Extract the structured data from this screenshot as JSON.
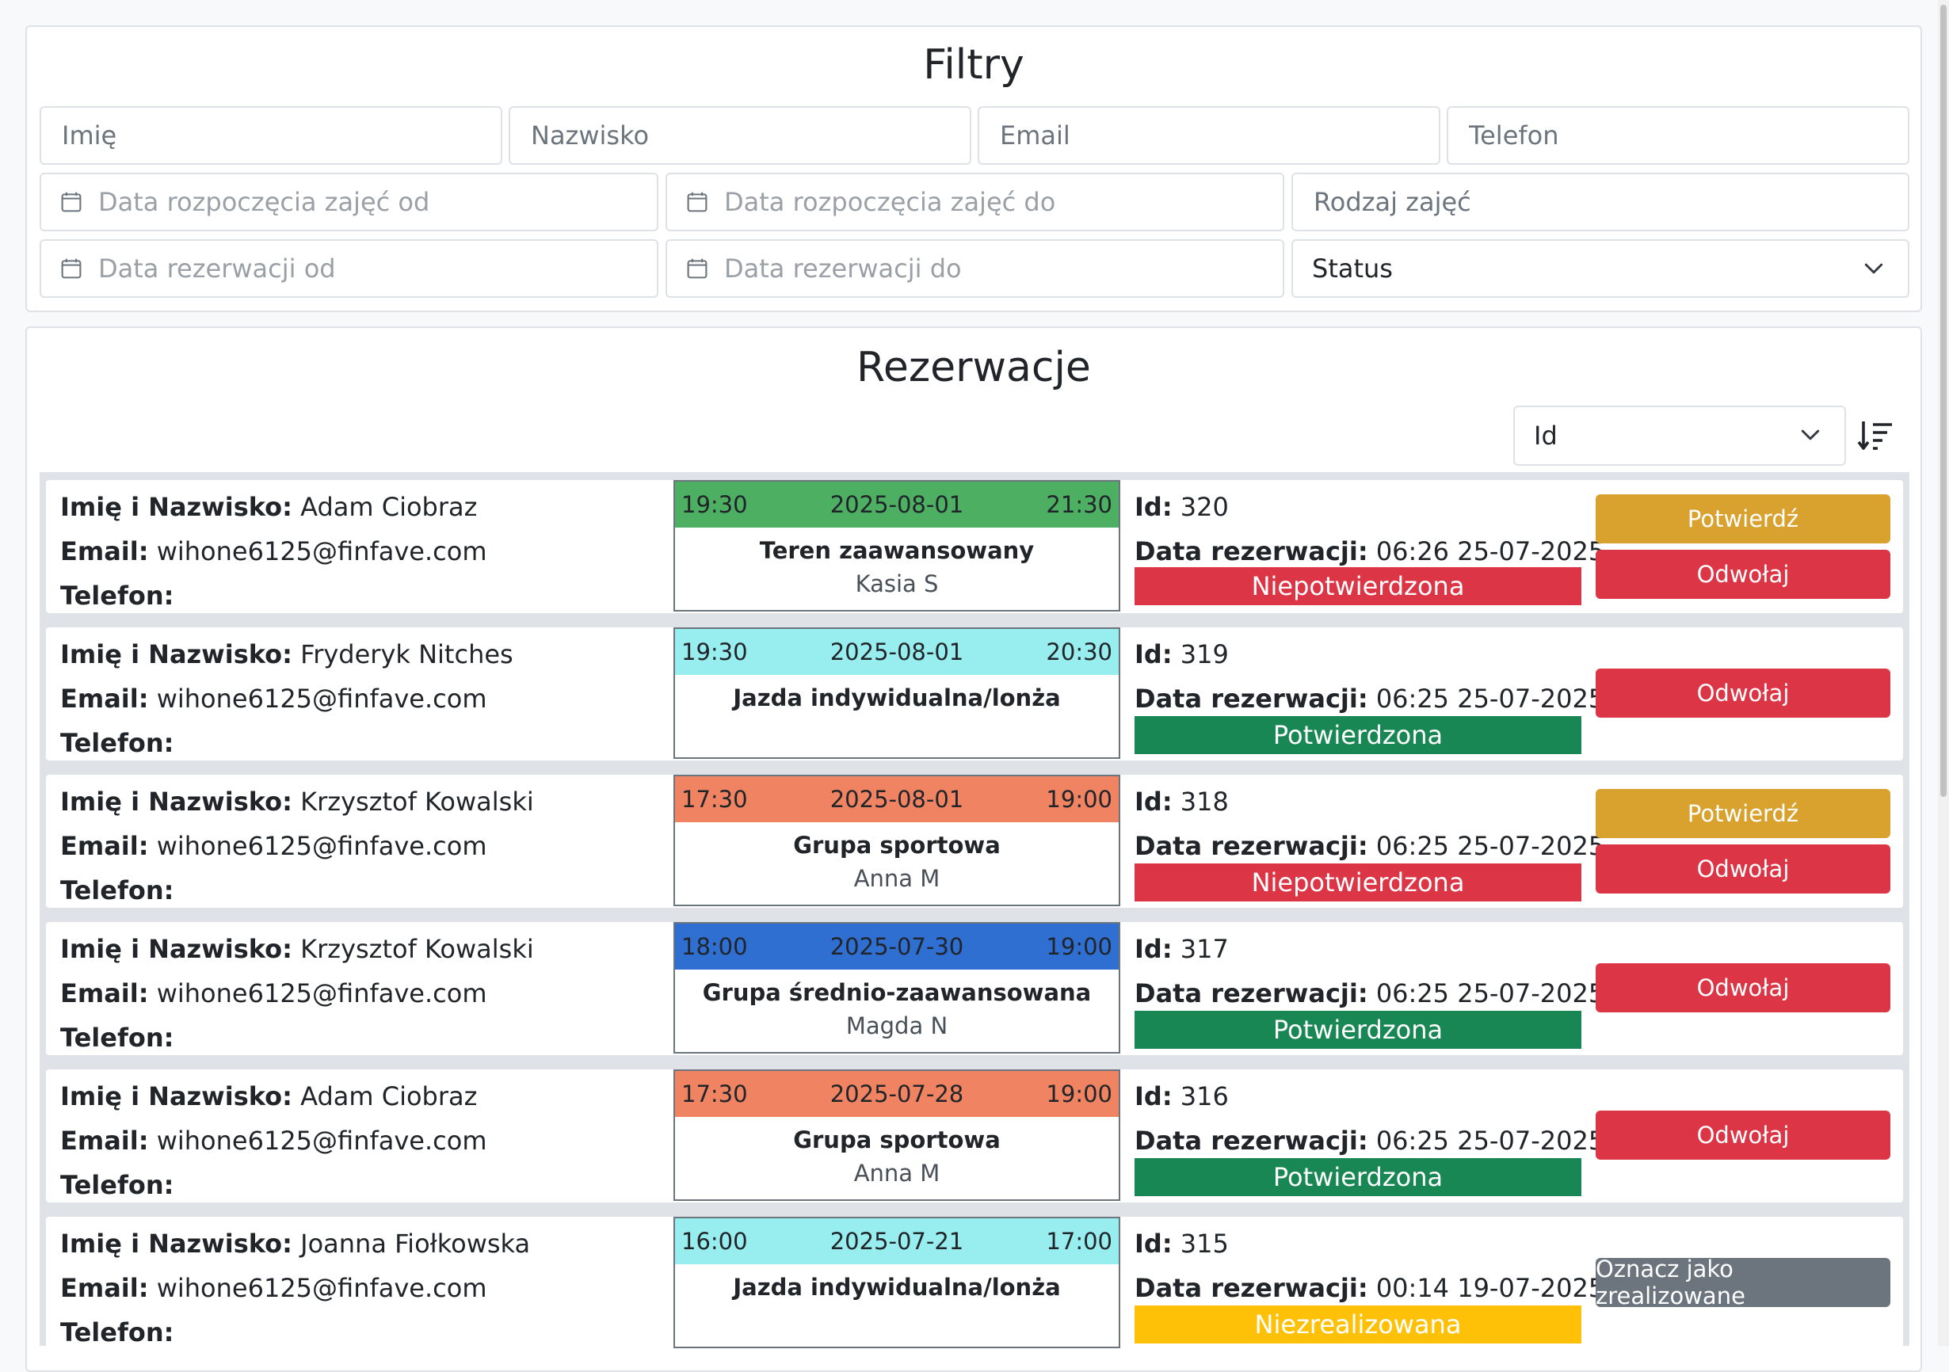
{
  "filters": {
    "title": "Filtry",
    "first_name_placeholder": "Imię",
    "last_name_placeholder": "Nazwisko",
    "email_placeholder": "Email",
    "phone_placeholder": "Telefon",
    "lesson_start_from_placeholder": "Data rozpoczęcia zajęć od",
    "lesson_start_to_placeholder": "Data rozpoczęcia zajęć do",
    "lesson_type_placeholder": "Rodzaj zajęć",
    "reservation_from_placeholder": "Data rezerwacji od",
    "reservation_to_placeholder": "Data rezerwacji do",
    "status_selected": "Status"
  },
  "reservations": {
    "title": "Rezerwacje",
    "sort_selected": "Id",
    "labels": {
      "name": "Imię i Nazwisko:",
      "email": "Email:",
      "phone": "Telefon:",
      "id": "Id:",
      "reservation_date": "Data rezerwacji:"
    },
    "items": [
      {
        "name": "Adam Ciobraz",
        "email": "wihone6125@finfave.com",
        "phone": "",
        "start": "19:30",
        "date": "2025-08-01",
        "end": "21:30",
        "lesson": "Teren zaawansowany",
        "trainer": "Kasia S",
        "lesson_color": "#4caf61",
        "id": "320",
        "reservation_date": "06:26 25-07-2025",
        "status": "Niepotwierdzona",
        "status_color": "#dc3545",
        "status_text_color": "#ffffff",
        "buttons": [
          {
            "label": "Potwierdź",
            "color": "#d9a22f"
          },
          {
            "label": "Odwołaj",
            "color": "#dc3545"
          }
        ]
      },
      {
        "name": "Fryderyk Nitches",
        "email": "wihone6125@finfave.com",
        "phone": "",
        "start": "19:30",
        "date": "2025-08-01",
        "end": "20:30",
        "lesson": "Jazda indywidualna/lonża",
        "trainer": "",
        "lesson_color": "#98eeee",
        "id": "319",
        "reservation_date": "06:25 25-07-2025",
        "status": "Potwierdzona",
        "status_color": "#198754",
        "status_text_color": "#ffffff",
        "buttons": [
          {
            "label": "Odwołaj",
            "color": "#dc3545"
          }
        ]
      },
      {
        "name": "Krzysztof Kowalski",
        "email": "wihone6125@finfave.com",
        "phone": "",
        "start": "17:30",
        "date": "2025-08-01",
        "end": "19:00",
        "lesson": "Grupa sportowa",
        "trainer": "Anna M",
        "lesson_color": "#f08462",
        "id": "318",
        "reservation_date": "06:25 25-07-2025",
        "status": "Niepotwierdzona",
        "status_color": "#dc3545",
        "status_text_color": "#ffffff",
        "buttons": [
          {
            "label": "Potwierdź",
            "color": "#d9a22f"
          },
          {
            "label": "Odwołaj",
            "color": "#dc3545"
          }
        ]
      },
      {
        "name": "Krzysztof Kowalski",
        "email": "wihone6125@finfave.com",
        "phone": "",
        "start": "18:00",
        "date": "2025-07-30",
        "end": "19:00",
        "lesson": "Grupa średnio-zaawansowana",
        "trainer": "Magda N",
        "lesson_color": "#2f6fd2",
        "id": "317",
        "reservation_date": "06:25 25-07-2025",
        "status": "Potwierdzona",
        "status_color": "#198754",
        "status_text_color": "#ffffff",
        "buttons": [
          {
            "label": "Odwołaj",
            "color": "#dc3545"
          }
        ]
      },
      {
        "name": "Adam Ciobraz",
        "email": "wihone6125@finfave.com",
        "phone": "",
        "start": "17:30",
        "date": "2025-07-28",
        "end": "19:00",
        "lesson": "Grupa sportowa",
        "trainer": "Anna M",
        "lesson_color": "#f08462",
        "id": "316",
        "reservation_date": "06:25 25-07-2025",
        "status": "Potwierdzona",
        "status_color": "#198754",
        "status_text_color": "#ffffff",
        "buttons": [
          {
            "label": "Odwołaj",
            "color": "#dc3545"
          }
        ]
      },
      {
        "name": "Joanna Fiołkowska",
        "email": "wihone6125@finfave.com",
        "phone": "",
        "start": "16:00",
        "date": "2025-07-21",
        "end": "17:00",
        "lesson": "Jazda indywidualna/lonża",
        "trainer": "",
        "lesson_color": "#98eeee",
        "id": "315",
        "reservation_date": "00:14 19-07-2025",
        "status": "Niezrealizowana",
        "status_color": "#ffc107",
        "status_text_color": "#ffffff",
        "buttons": [
          {
            "label": "Oznacz jako zrealizowane",
            "color": "#6c757d"
          }
        ]
      }
    ]
  },
  "icons": {
    "calendar": "calendar-icon",
    "chevron": "chevron-down-icon",
    "sort": "sort-descending-icon"
  }
}
